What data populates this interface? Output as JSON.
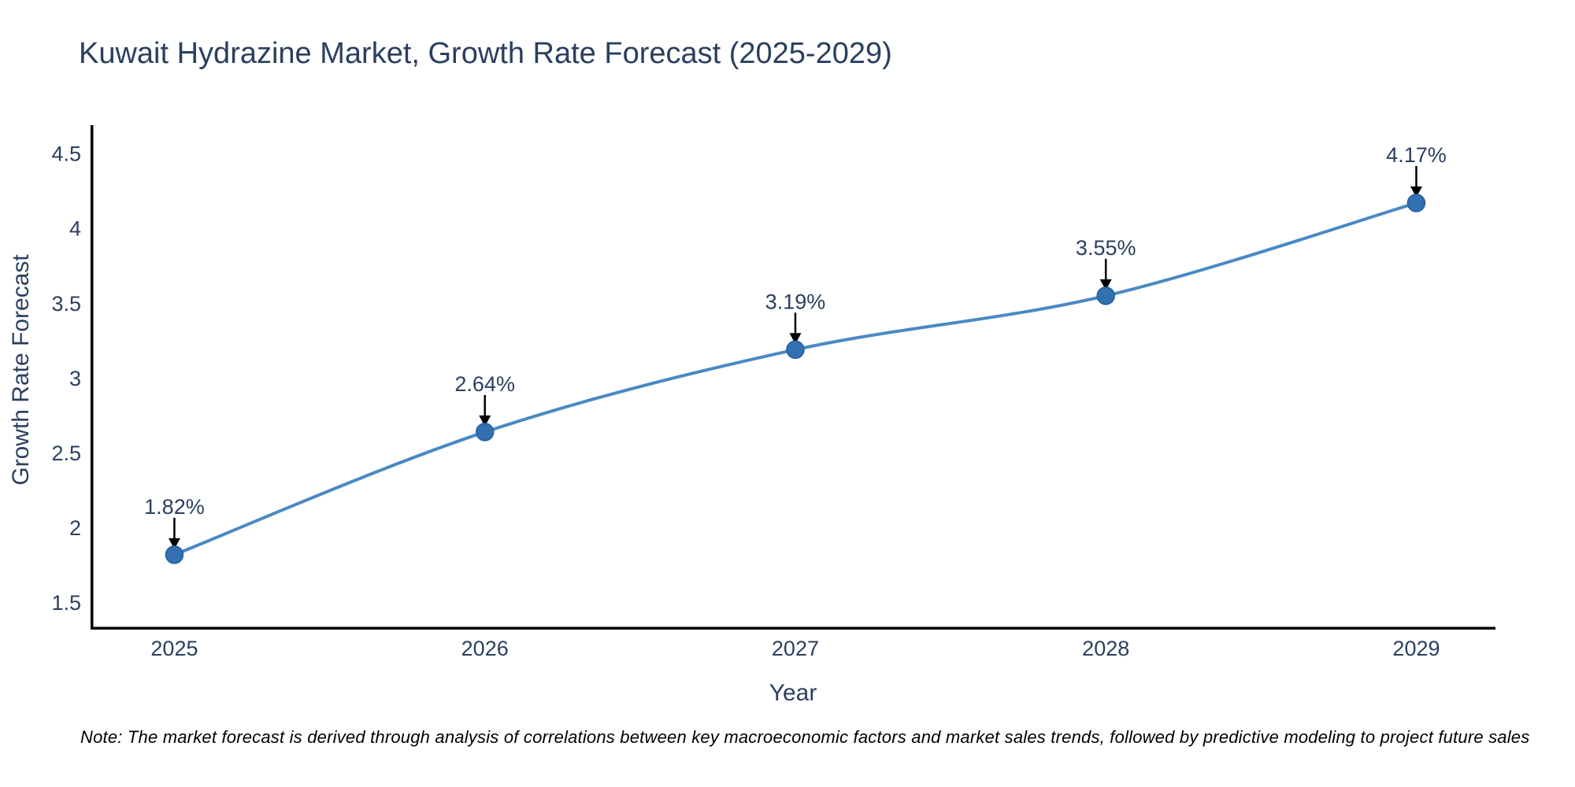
{
  "title": "Kuwait Hydrazine Market, Growth Rate Forecast (2025-2029)",
  "note": "Note: The market forecast is derived through analysis of correlations between key macroeconomic factors and market sales trends, followed by predictive modeling to project future sales",
  "chart_data": {
    "type": "line",
    "title": "Kuwait Hydrazine Market, Growth Rate Forecast (2025-2029)",
    "xlabel": "Year",
    "ylabel": "Growth Rate Forecast",
    "categories": [
      "2025",
      "2026",
      "2027",
      "2028",
      "2029"
    ],
    "x": [
      2025,
      2026,
      2027,
      2028,
      2029
    ],
    "values": [
      1.82,
      2.64,
      3.19,
      3.55,
      4.17
    ],
    "point_labels": [
      "1.82%",
      "2.64%",
      "3.19%",
      "3.55%",
      "4.17%"
    ],
    "ytick_labels": [
      "1.5",
      "2",
      "2.5",
      "3",
      "3.5",
      "4",
      "4.5"
    ],
    "xlim": [
      2024.73,
      2029.255
    ],
    "ylim": [
      1.32,
      4.69
    ],
    "line_shape": "spline",
    "markers": true,
    "annotations": "arrow-down-to-point",
    "grid": false,
    "legend_position": "none",
    "colors": {
      "line": "#4a89c4",
      "marker_fill": "#3270b2",
      "marker_edge": "#255f9e",
      "axis_spine": "#000000",
      "arrow": "#000000",
      "text": "#2a3f5f",
      "note_text": "#000000",
      "background": "#ffffff"
    }
  }
}
